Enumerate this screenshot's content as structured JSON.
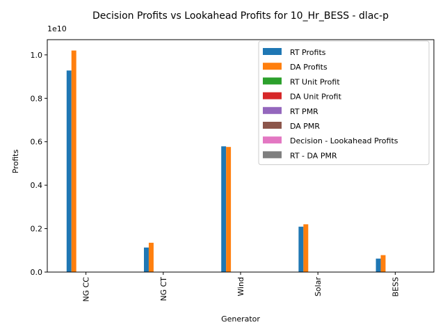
{
  "chart_data": {
    "type": "bar",
    "title": "Decision Profits vs Lookahead Profits for 10_Hr_BESS - dlac-p",
    "xlabel": "Generator",
    "ylabel": "Profits",
    "y_offset_label": "1e10",
    "ylim": [
      0,
      10700000000
    ],
    "yticks": [
      0,
      2000000000,
      4000000000,
      6000000000,
      8000000000,
      10000000000
    ],
    "ytick_labels": [
      "0.0",
      "0.2",
      "0.4",
      "0.6",
      "0.8",
      "1.0"
    ],
    "categories": [
      "NG CC",
      "NG CT",
      "Wind",
      "Solar",
      "BESS"
    ],
    "legend_position": "top-right",
    "grid": false,
    "series": [
      {
        "name": "RT Profits",
        "color": "#1f77b4",
        "values": [
          9280000000,
          1130000000,
          5790000000,
          2090000000,
          620000000
        ]
      },
      {
        "name": "DA Profits",
        "color": "#ff7f0e",
        "values": [
          10200000000,
          1350000000,
          5760000000,
          2200000000,
          780000000
        ]
      },
      {
        "name": "RT Unit Profit",
        "color": "#2ca02c",
        "values": [
          0,
          0,
          0,
          0,
          0
        ]
      },
      {
        "name": "DA Unit Profit",
        "color": "#d62728",
        "values": [
          0,
          0,
          0,
          0,
          0
        ]
      },
      {
        "name": "RT PMR",
        "color": "#9467bd",
        "values": [
          0,
          0,
          0,
          0,
          0
        ]
      },
      {
        "name": "DA PMR",
        "color": "#8c564b",
        "values": [
          0,
          0,
          0,
          0,
          0
        ]
      },
      {
        "name": "Decision - Lookahead Profits",
        "color": "#e377c2",
        "values": [
          0,
          0,
          0,
          0,
          0
        ]
      },
      {
        "name": "RT - DA PMR",
        "color": "#7f7f7f",
        "values": [
          0,
          0,
          0,
          0,
          0
        ]
      }
    ]
  }
}
